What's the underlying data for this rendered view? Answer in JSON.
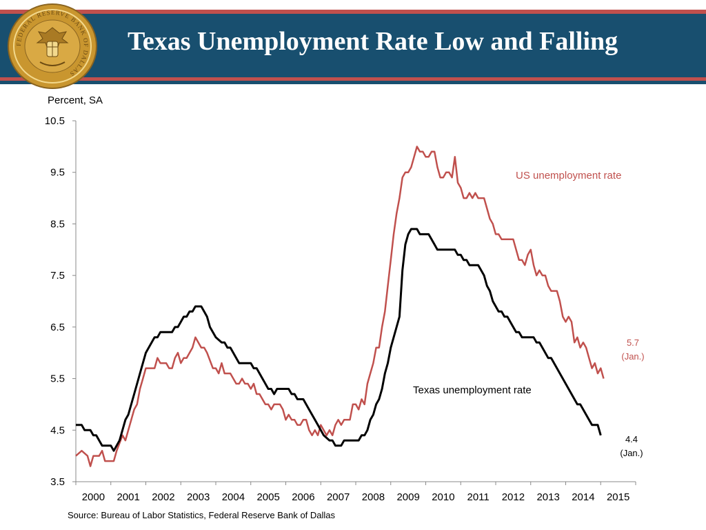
{
  "header": {
    "title": "Texas Unemployment Rate Low and Falling",
    "seal_text": "FEDERAL RESERVE BANK OF DALLAS"
  },
  "source": "Source: Bureau of Labor Statistics, Federal Reserve Bank of Dallas",
  "colors": {
    "banner": "#184f6f",
    "accent": "#c0504d",
    "us_series": "#c0504d",
    "texas_series": "#000000",
    "seal": "#c9962f"
  },
  "chart_data": {
    "type": "line",
    "ylabel": "Percent, SA",
    "ylim": [
      3.5,
      10.5
    ],
    "yticks": [
      "10.5",
      "9.5",
      "8.5",
      "7.5",
      "6.5",
      "5.5",
      "4.5",
      "3.5"
    ],
    "xlim": [
      2000,
      2016
    ],
    "xticks": [
      "2000",
      "2001",
      "2002",
      "2003",
      "2004",
      "2005",
      "2006",
      "2007",
      "2008",
      "2009",
      "2010",
      "2011",
      "2012",
      "2013",
      "2014",
      "2015"
    ],
    "grid": false,
    "legend": "inline labels",
    "series": [
      {
        "name": "US unemployment rate",
        "color": "#c0504d",
        "end_label": [
          "5.7",
          "(Jan.)"
        ],
        "points": [
          [
            "2000-01",
            4.0
          ],
          [
            "2000-03",
            4.1
          ],
          [
            "2000-05",
            4.0
          ],
          [
            "2000-06",
            3.8
          ],
          [
            "2000-07",
            4.0
          ],
          [
            "2000-09",
            4.0
          ],
          [
            "2000-10",
            4.1
          ],
          [
            "2000-11",
            3.9
          ],
          [
            "2000-12",
            3.9
          ],
          [
            "2001-02",
            3.9
          ],
          [
            "2001-03",
            4.1
          ],
          [
            "2001-05",
            4.4
          ],
          [
            "2001-06",
            4.3
          ],
          [
            "2001-07",
            4.5
          ],
          [
            "2001-09",
            4.9
          ],
          [
            "2001-10",
            5.0
          ],
          [
            "2001-11",
            5.3
          ],
          [
            "2001-12",
            5.5
          ],
          [
            "2002-01",
            5.7
          ],
          [
            "2002-04",
            5.7
          ],
          [
            "2002-05",
            5.9
          ],
          [
            "2002-06",
            5.8
          ],
          [
            "2002-08",
            5.8
          ],
          [
            "2002-09",
            5.7
          ],
          [
            "2002-10",
            5.7
          ],
          [
            "2002-11",
            5.9
          ],
          [
            "2002-12",
            6.0
          ],
          [
            "2003-01",
            5.8
          ],
          [
            "2003-02",
            5.9
          ],
          [
            "2003-03",
            5.9
          ],
          [
            "2003-05",
            6.1
          ],
          [
            "2003-06",
            6.3
          ],
          [
            "2003-08",
            6.1
          ],
          [
            "2003-09",
            6.1
          ],
          [
            "2003-10",
            6.0
          ],
          [
            "2003-12",
            5.7
          ],
          [
            "2004-01",
            5.7
          ],
          [
            "2004-02",
            5.6
          ],
          [
            "2004-03",
            5.8
          ],
          [
            "2004-04",
            5.6
          ],
          [
            "2004-06",
            5.6
          ],
          [
            "2004-08",
            5.4
          ],
          [
            "2004-09",
            5.4
          ],
          [
            "2004-10",
            5.5
          ],
          [
            "2004-11",
            5.4
          ],
          [
            "2004-12",
            5.4
          ],
          [
            "2005-01",
            5.3
          ],
          [
            "2005-02",
            5.4
          ],
          [
            "2005-03",
            5.2
          ],
          [
            "2005-04",
            5.2
          ],
          [
            "2005-06",
            5.0
          ],
          [
            "2005-07",
            5.0
          ],
          [
            "2005-08",
            4.9
          ],
          [
            "2005-09",
            5.0
          ],
          [
            "2005-11",
            5.0
          ],
          [
            "2005-12",
            4.9
          ],
          [
            "2006-01",
            4.7
          ],
          [
            "2006-02",
            4.8
          ],
          [
            "2006-03",
            4.7
          ],
          [
            "2006-04",
            4.7
          ],
          [
            "2006-05",
            4.6
          ],
          [
            "2006-06",
            4.6
          ],
          [
            "2006-07",
            4.7
          ],
          [
            "2006-08",
            4.7
          ],
          [
            "2006-09",
            4.5
          ],
          [
            "2006-10",
            4.4
          ],
          [
            "2006-11",
            4.5
          ],
          [
            "2006-12",
            4.4
          ],
          [
            "2007-01",
            4.6
          ],
          [
            "2007-02",
            4.5
          ],
          [
            "2007-03",
            4.4
          ],
          [
            "2007-04",
            4.5
          ],
          [
            "2007-05",
            4.4
          ],
          [
            "2007-06",
            4.6
          ],
          [
            "2007-07",
            4.7
          ],
          [
            "2007-08",
            4.6
          ],
          [
            "2007-09",
            4.7
          ],
          [
            "2007-11",
            4.7
          ],
          [
            "2007-12",
            5.0
          ],
          [
            "2008-01",
            5.0
          ],
          [
            "2008-02",
            4.9
          ],
          [
            "2008-03",
            5.1
          ],
          [
            "2008-04",
            5.0
          ],
          [
            "2008-05",
            5.4
          ],
          [
            "2008-06",
            5.6
          ],
          [
            "2008-07",
            5.8
          ],
          [
            "2008-08",
            6.1
          ],
          [
            "2008-09",
            6.1
          ],
          [
            "2008-10",
            6.5
          ],
          [
            "2008-11",
            6.8
          ],
          [
            "2008-12",
            7.3
          ],
          [
            "2009-01",
            7.8
          ],
          [
            "2009-02",
            8.3
          ],
          [
            "2009-03",
            8.7
          ],
          [
            "2009-04",
            9.0
          ],
          [
            "2009-05",
            9.4
          ],
          [
            "2009-06",
            9.5
          ],
          [
            "2009-07",
            9.5
          ],
          [
            "2009-08",
            9.6
          ],
          [
            "2009-09",
            9.8
          ],
          [
            "2009-10",
            10.0
          ],
          [
            "2009-11",
            9.9
          ],
          [
            "2009-12",
            9.9
          ],
          [
            "2010-01",
            9.8
          ],
          [
            "2010-02",
            9.8
          ],
          [
            "2010-03",
            9.9
          ],
          [
            "2010-04",
            9.9
          ],
          [
            "2010-05",
            9.6
          ],
          [
            "2010-06",
            9.4
          ],
          [
            "2010-07",
            9.4
          ],
          [
            "2010-08",
            9.5
          ],
          [
            "2010-09",
            9.5
          ],
          [
            "2010-10",
            9.4
          ],
          [
            "2010-11",
            9.8
          ],
          [
            "2010-12",
            9.3
          ],
          [
            "2011-01",
            9.2
          ],
          [
            "2011-02",
            9.0
          ],
          [
            "2011-03",
            9.0
          ],
          [
            "2011-04",
            9.1
          ],
          [
            "2011-05",
            9.0
          ],
          [
            "2011-06",
            9.1
          ],
          [
            "2011-07",
            9.0
          ],
          [
            "2011-09",
            9.0
          ],
          [
            "2011-10",
            8.8
          ],
          [
            "2011-11",
            8.6
          ],
          [
            "2011-12",
            8.5
          ],
          [
            "2012-01",
            8.3
          ],
          [
            "2012-02",
            8.3
          ],
          [
            "2012-03",
            8.2
          ],
          [
            "2012-06",
            8.2
          ],
          [
            "2012-07",
            8.2
          ],
          [
            "2012-08",
            8.0
          ],
          [
            "2012-09",
            7.8
          ],
          [
            "2012-10",
            7.8
          ],
          [
            "2012-11",
            7.7
          ],
          [
            "2012-12",
            7.9
          ],
          [
            "2013-01",
            8.0
          ],
          [
            "2013-02",
            7.7
          ],
          [
            "2013-03",
            7.5
          ],
          [
            "2013-04",
            7.6
          ],
          [
            "2013-05",
            7.5
          ],
          [
            "2013-06",
            7.5
          ],
          [
            "2013-07",
            7.3
          ],
          [
            "2013-08",
            7.2
          ],
          [
            "2013-10",
            7.2
          ],
          [
            "2013-11",
            7.0
          ],
          [
            "2013-12",
            6.7
          ],
          [
            "2014-01",
            6.6
          ],
          [
            "2014-02",
            6.7
          ],
          [
            "2014-03",
            6.6
          ],
          [
            "2014-04",
            6.2
          ],
          [
            "2014-05",
            6.3
          ],
          [
            "2014-06",
            6.1
          ],
          [
            "2014-07",
            6.2
          ],
          [
            "2014-08",
            6.1
          ],
          [
            "2014-09",
            5.9
          ],
          [
            "2014-10",
            5.7
          ],
          [
            "2014-11",
            5.8
          ],
          [
            "2014-12",
            5.6
          ],
          [
            "2015-01",
            5.7
          ],
          [
            "2015-02",
            5.5
          ]
        ]
      },
      {
        "name": "Texas unemployment rate",
        "color": "#000000",
        "end_label": [
          "4.4",
          "(Jan.)"
        ],
        "points": [
          [
            "2000-01",
            4.6
          ],
          [
            "2000-03",
            4.6
          ],
          [
            "2000-04",
            4.5
          ],
          [
            "2000-06",
            4.5
          ],
          [
            "2000-07",
            4.4
          ],
          [
            "2000-08",
            4.4
          ],
          [
            "2000-10",
            4.2
          ],
          [
            "2000-12",
            4.2
          ],
          [
            "2001-01",
            4.2
          ],
          [
            "2001-02",
            4.1
          ],
          [
            "2001-03",
            4.2
          ],
          [
            "2001-04",
            4.3
          ],
          [
            "2001-06",
            4.7
          ],
          [
            "2001-07",
            4.8
          ],
          [
            "2001-09",
            5.2
          ],
          [
            "2001-11",
            5.6
          ],
          [
            "2002-01",
            6.0
          ],
          [
            "2002-04",
            6.3
          ],
          [
            "2002-05",
            6.3
          ],
          [
            "2002-06",
            6.4
          ],
          [
            "2002-10",
            6.4
          ],
          [
            "2002-11",
            6.5
          ],
          [
            "2002-12",
            6.5
          ],
          [
            "2003-01",
            6.6
          ],
          [
            "2003-02",
            6.7
          ],
          [
            "2003-03",
            6.7
          ],
          [
            "2003-04",
            6.8
          ],
          [
            "2003-05",
            6.8
          ],
          [
            "2003-06",
            6.9
          ],
          [
            "2003-08",
            6.9
          ],
          [
            "2003-09",
            6.8
          ],
          [
            "2003-10",
            6.7
          ],
          [
            "2003-11",
            6.5
          ],
          [
            "2004-01",
            6.3
          ],
          [
            "2004-03",
            6.2
          ],
          [
            "2004-04",
            6.2
          ],
          [
            "2004-05",
            6.1
          ],
          [
            "2004-06",
            6.1
          ],
          [
            "2004-08",
            5.9
          ],
          [
            "2004-09",
            5.8
          ],
          [
            "2004-12",
            5.8
          ],
          [
            "2005-01",
            5.8
          ],
          [
            "2005-02",
            5.7
          ],
          [
            "2005-03",
            5.7
          ],
          [
            "2005-05",
            5.5
          ],
          [
            "2005-07",
            5.3
          ],
          [
            "2005-08",
            5.3
          ],
          [
            "2005-09",
            5.2
          ],
          [
            "2005-10",
            5.3
          ],
          [
            "2005-12",
            5.3
          ],
          [
            "2006-02",
            5.3
          ],
          [
            "2006-03",
            5.2
          ],
          [
            "2006-04",
            5.2
          ],
          [
            "2006-05",
            5.1
          ],
          [
            "2006-07",
            5.1
          ],
          [
            "2006-09",
            4.9
          ],
          [
            "2006-11",
            4.7
          ],
          [
            "2007-01",
            4.5
          ],
          [
            "2007-02",
            4.4
          ],
          [
            "2007-04",
            4.3
          ],
          [
            "2007-05",
            4.3
          ],
          [
            "2007-06",
            4.2
          ],
          [
            "2007-08",
            4.2
          ],
          [
            "2007-09",
            4.3
          ],
          [
            "2007-12",
            4.3
          ],
          [
            "2008-01",
            4.3
          ],
          [
            "2008-02",
            4.3
          ],
          [
            "2008-03",
            4.4
          ],
          [
            "2008-04",
            4.4
          ],
          [
            "2008-05",
            4.5
          ],
          [
            "2008-06",
            4.7
          ],
          [
            "2008-07",
            4.8
          ],
          [
            "2008-08",
            5.0
          ],
          [
            "2008-09",
            5.1
          ],
          [
            "2008-10",
            5.3
          ],
          [
            "2008-11",
            5.6
          ],
          [
            "2008-12",
            5.8
          ],
          [
            "2009-01",
            6.1
          ],
          [
            "2009-03",
            6.5
          ],
          [
            "2009-04",
            6.7
          ],
          [
            "2009-05",
            7.6
          ],
          [
            "2009-06",
            8.1
          ],
          [
            "2009-07",
            8.3
          ],
          [
            "2009-08",
            8.4
          ],
          [
            "2009-10",
            8.4
          ],
          [
            "2009-11",
            8.3
          ],
          [
            "2010-02",
            8.3
          ],
          [
            "2010-04",
            8.1
          ],
          [
            "2010-05",
            8.0
          ],
          [
            "2010-11",
            8.0
          ],
          [
            "2010-12",
            7.9
          ],
          [
            "2011-01",
            7.9
          ],
          [
            "2011-02",
            7.8
          ],
          [
            "2011-03",
            7.8
          ],
          [
            "2011-04",
            7.7
          ],
          [
            "2011-07",
            7.7
          ],
          [
            "2011-09",
            7.5
          ],
          [
            "2011-10",
            7.3
          ],
          [
            "2011-11",
            7.2
          ],
          [
            "2011-12",
            7.0
          ],
          [
            "2012-02",
            6.8
          ],
          [
            "2012-03",
            6.8
          ],
          [
            "2012-04",
            6.7
          ],
          [
            "2012-05",
            6.7
          ],
          [
            "2012-06",
            6.6
          ],
          [
            "2012-08",
            6.4
          ],
          [
            "2012-09",
            6.4
          ],
          [
            "2012-10",
            6.3
          ],
          [
            "2012-12",
            6.3
          ],
          [
            "2013-02",
            6.3
          ],
          [
            "2013-03",
            6.2
          ],
          [
            "2013-04",
            6.2
          ],
          [
            "2013-06",
            6.0
          ],
          [
            "2013-07",
            5.9
          ],
          [
            "2013-08",
            5.9
          ],
          [
            "2013-12",
            5.5
          ],
          [
            "2014-04",
            5.1
          ],
          [
            "2014-05",
            5.0
          ],
          [
            "2014-06",
            5.0
          ],
          [
            "2014-10",
            4.6
          ],
          [
            "2014-12",
            4.6
          ],
          [
            "2015-01",
            4.4
          ]
        ]
      }
    ]
  }
}
